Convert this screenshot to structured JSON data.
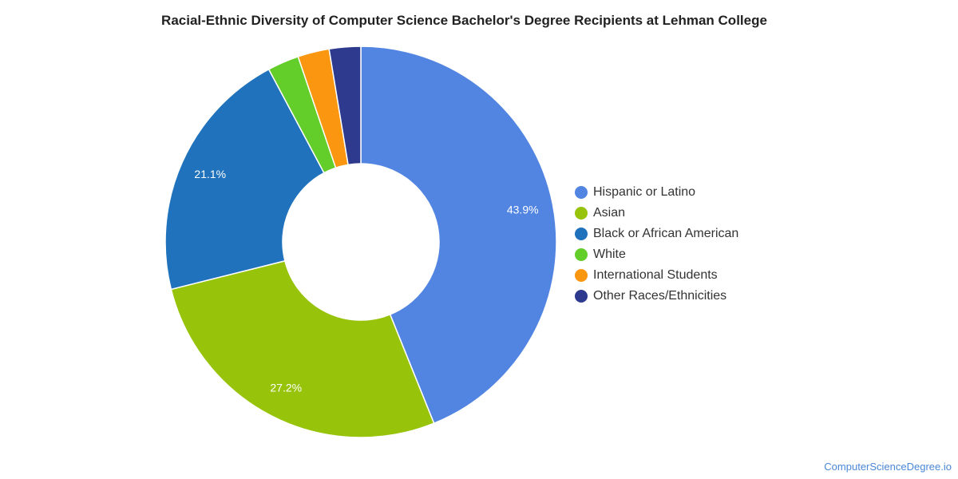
{
  "chart_data": {
    "type": "pie",
    "variant": "donut",
    "title": "Racial-Ethnic Diversity of Computer Science Bachelor's Degree Recipients at Lehman College",
    "legend_position": "right",
    "series": [
      {
        "name": "Hispanic or Latino",
        "value": 43.9,
        "label": "43.9%",
        "color": "#5285e2"
      },
      {
        "name": "Asian",
        "value": 27.2,
        "label": "27.2%",
        "color": "#97c30b"
      },
      {
        "name": "Black or African American",
        "value": 21.1,
        "label": "21.1%",
        "color": "#1f72bb"
      },
      {
        "name": "White",
        "value": 2.6,
        "label": "",
        "color": "#63cd2a"
      },
      {
        "name": "International Students",
        "value": 2.6,
        "label": "",
        "color": "#fa960f"
      },
      {
        "name": "Other Races/Ethnicities",
        "value": 2.6,
        "label": "",
        "color": "#2d3a8e"
      }
    ]
  },
  "footer": {
    "source": "ComputerScienceDegree.io"
  }
}
